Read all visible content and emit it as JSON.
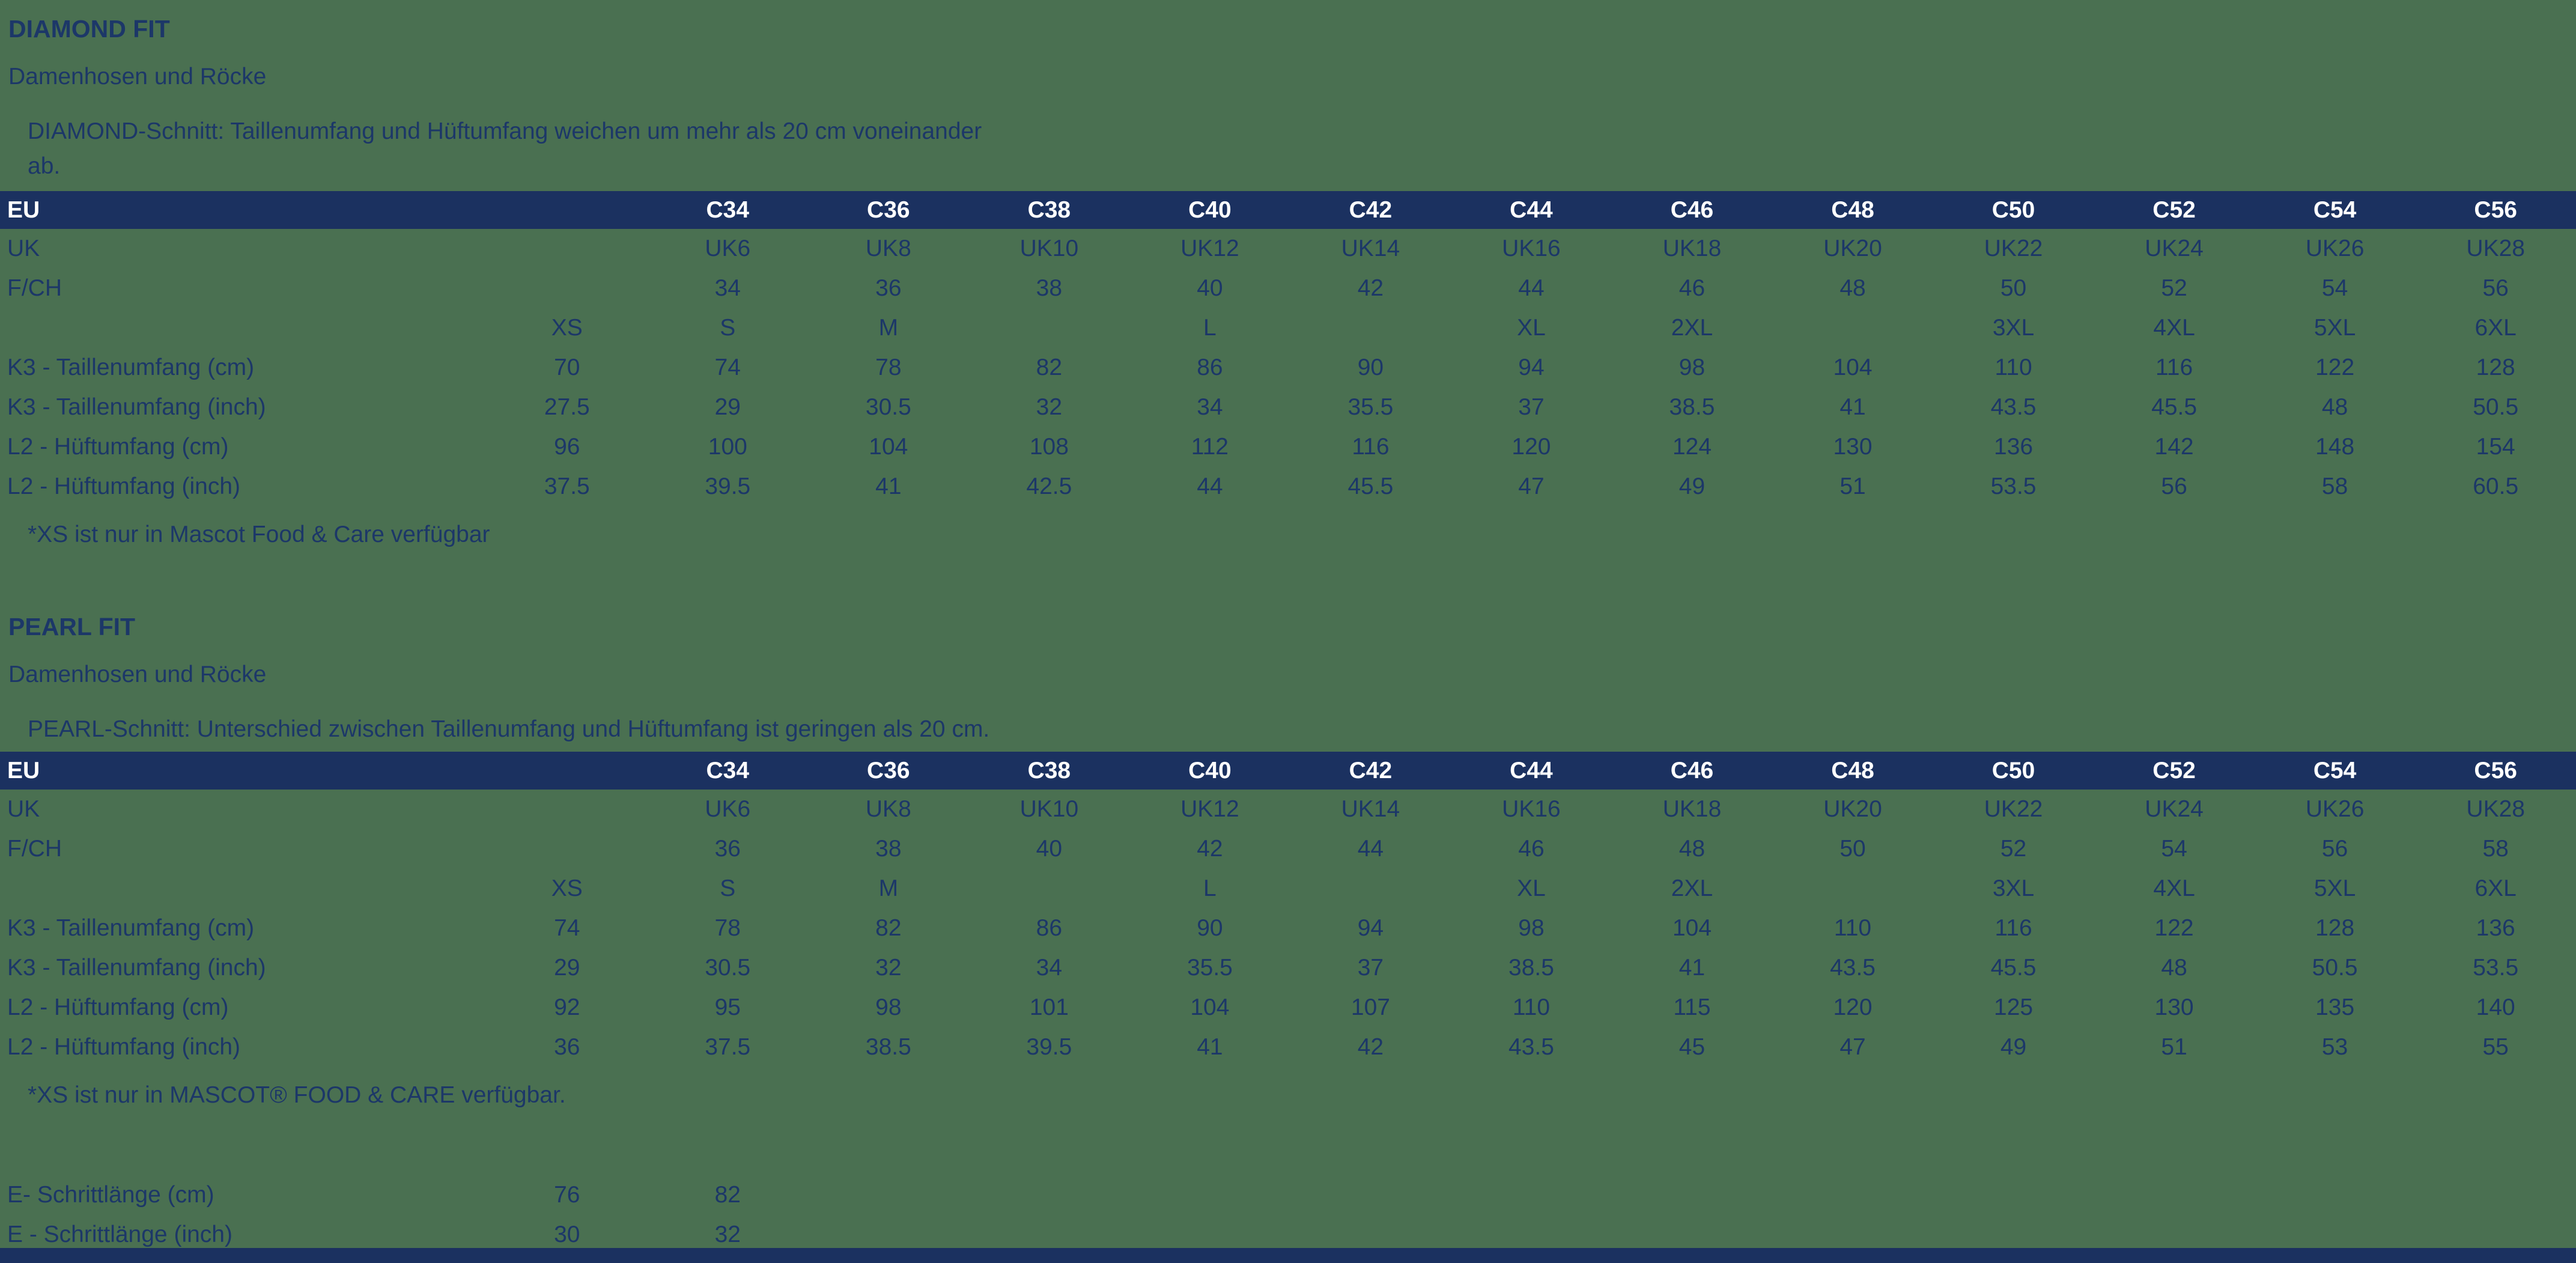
{
  "colors": {
    "background": "#4a7051",
    "header_bar": "#1b3160",
    "header_text": "#ffffff",
    "body_text": "#1c3768"
  },
  "sections": [
    {
      "title": "DIAMOND FIT",
      "subtitle": "Damenhosen und Röcke",
      "desc_lines": [
        "DIAMOND-Schnitt: Taillenumfang und Hüftumfang weichen um mehr als 20 cm voneinander",
        "ab."
      ],
      "table": {
        "header": [
          "EU",
          "",
          "C34",
          "C36",
          "C38",
          "C40",
          "C42",
          "C44",
          "C46",
          "C48",
          "C50",
          "C52",
          "C54",
          "C56"
        ],
        "rows": [
          [
            "UK",
            "",
            "UK6",
            "UK8",
            "UK10",
            "UK12",
            "UK14",
            "UK16",
            "UK18",
            "UK20",
            "UK22",
            "UK24",
            "UK26",
            "UK28"
          ],
          [
            "F/CH",
            "",
            "34",
            "36",
            "38",
            "40",
            "42",
            "44",
            "46",
            "48",
            "50",
            "52",
            "54",
            "56"
          ],
          [
            "",
            "XS",
            "S",
            "M",
            "",
            "L",
            "",
            "XL",
            "2XL",
            "",
            "3XL",
            "4XL",
            "5XL",
            "6XL"
          ],
          [
            "K3 - Taillenumfang (cm)",
            "70",
            "74",
            "78",
            "82",
            "86",
            "90",
            "94",
            "98",
            "104",
            "110",
            "116",
            "122",
            "128"
          ],
          [
            "K3 - Taillenumfang (inch)",
            "27.5",
            "29",
            "30.5",
            "32",
            "34",
            "35.5",
            "37",
            "38.5",
            "41",
            "43.5",
            "45.5",
            "48",
            "50.5"
          ],
          [
            "L2 - Hüftumfang (cm)",
            "96",
            "100",
            "104",
            "108",
            "112",
            "116",
            "120",
            "124",
            "130",
            "136",
            "142",
            "148",
            "154"
          ],
          [
            "L2 - Hüftumfang (inch)",
            "37.5",
            "39.5",
            "41",
            "42.5",
            "44",
            "45.5",
            "47",
            "49",
            "51",
            "53.5",
            "56",
            "58",
            "60.5"
          ]
        ]
      },
      "footnote": "*XS ist nur in Mascot Food & Care verfügbar"
    },
    {
      "title": "PEARL FIT",
      "subtitle": "Damenhosen und Röcke",
      "desc_lines": [
        "PEARL-Schnitt: Unterschied zwischen Taillenumfang und Hüftumfang ist geringen als 20 cm."
      ],
      "table": {
        "header": [
          "EU",
          "",
          "C34",
          "C36",
          "C38",
          "C40",
          "C42",
          "C44",
          "C46",
          "C48",
          "C50",
          "C52",
          "C54",
          "C56"
        ],
        "rows": [
          [
            "UK",
            "",
            "UK6",
            "UK8",
            "UK10",
            "UK12",
            "UK14",
            "UK16",
            "UK18",
            "UK20",
            "UK22",
            "UK24",
            "UK26",
            "UK28"
          ],
          [
            "F/CH",
            "",
            "36",
            "38",
            "40",
            "42",
            "44",
            "46",
            "48",
            "50",
            "52",
            "54",
            "56",
            "58"
          ],
          [
            "",
            "XS",
            "S",
            "M",
            "",
            "L",
            "",
            "XL",
            "2XL",
            "",
            "3XL",
            "4XL",
            "5XL",
            "6XL"
          ],
          [
            "K3 - Taillenumfang (cm)",
            "74",
            "78",
            "82",
            "86",
            "90",
            "94",
            "98",
            "104",
            "110",
            "116",
            "122",
            "128",
            "136"
          ],
          [
            "K3 - Taillenumfang (inch)",
            "29",
            "30.5",
            "32",
            "34",
            "35.5",
            "37",
            "38.5",
            "41",
            "43.5",
            "45.5",
            "48",
            "50.5",
            "53.5"
          ],
          [
            "L2 - Hüftumfang (cm)",
            "92",
            "95",
            "98",
            "101",
            "104",
            "107",
            "110",
            "115",
            "120",
            "125",
            "130",
            "135",
            "140"
          ],
          [
            "L2 - Hüftumfang (inch)",
            "36",
            "37.5",
            "38.5",
            "39.5",
            "41",
            "42",
            "43.5",
            "45",
            "47",
            "49",
            "51",
            "53",
            "55"
          ]
        ]
      },
      "footnote": "*XS ist nur in MASCOT® FOOD & CARE verfügbar."
    }
  ],
  "inseam": {
    "rows": [
      [
        "E- Schrittlänge (cm)",
        "76",
        "82",
        "",
        "",
        "",
        "",
        "",
        "",
        "",
        "",
        "",
        "",
        ""
      ],
      [
        "E - Schrittlänge (inch)",
        "30",
        "32",
        "",
        "",
        "",
        "",
        "",
        "",
        "",
        "",
        "",
        "",
        ""
      ]
    ]
  }
}
